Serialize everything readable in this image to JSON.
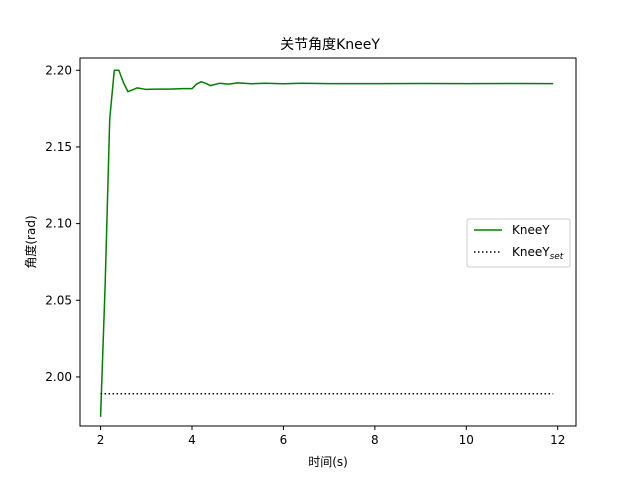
{
  "chart_data": {
    "type": "line",
    "title": "关节角度KneeY",
    "xlabel": "时间(s)",
    "ylabel": "角度(rad)",
    "xlim": [
      1.55,
      12.4
    ],
    "ylim": [
      1.968,
      2.208
    ],
    "xticks": [
      2,
      4,
      6,
      8,
      10,
      12
    ],
    "yticks": [
      2.0,
      2.05,
      2.1,
      2.15,
      2.2
    ],
    "ytick_labels": [
      "2.00",
      "2.05",
      "2.10",
      "2.15",
      "2.20"
    ],
    "grid": false,
    "legend_position": "center-right",
    "series": [
      {
        "name": "KneeY",
        "color": "#008000",
        "style": "solid",
        "x": [
          2.0,
          2.1,
          2.2,
          2.3,
          2.4,
          2.5,
          2.6,
          2.8,
          3.0,
          3.2,
          3.5,
          3.8,
          4.0,
          4.1,
          4.2,
          4.3,
          4.4,
          4.6,
          4.8,
          5.0,
          5.3,
          5.6,
          6.0,
          6.4,
          7.0,
          8.0,
          9.0,
          10.0,
          11.0,
          11.9
        ],
        "values": [
          1.974,
          2.06,
          2.168,
          2.2,
          2.2,
          2.192,
          2.186,
          2.1885,
          2.1875,
          2.1877,
          2.1877,
          2.188,
          2.188,
          2.191,
          2.1925,
          2.1915,
          2.19,
          2.1915,
          2.191,
          2.1918,
          2.1912,
          2.1915,
          2.1912,
          2.1915,
          2.1913,
          2.1913,
          2.1914,
          2.1913,
          2.1914,
          2.1913
        ]
      },
      {
        "name": "KneeY",
        "name_subscript": "set",
        "color": "#000000",
        "style": "dotted",
        "x": [
          2.0,
          11.9
        ],
        "values": [
          1.989,
          1.989
        ]
      }
    ]
  }
}
